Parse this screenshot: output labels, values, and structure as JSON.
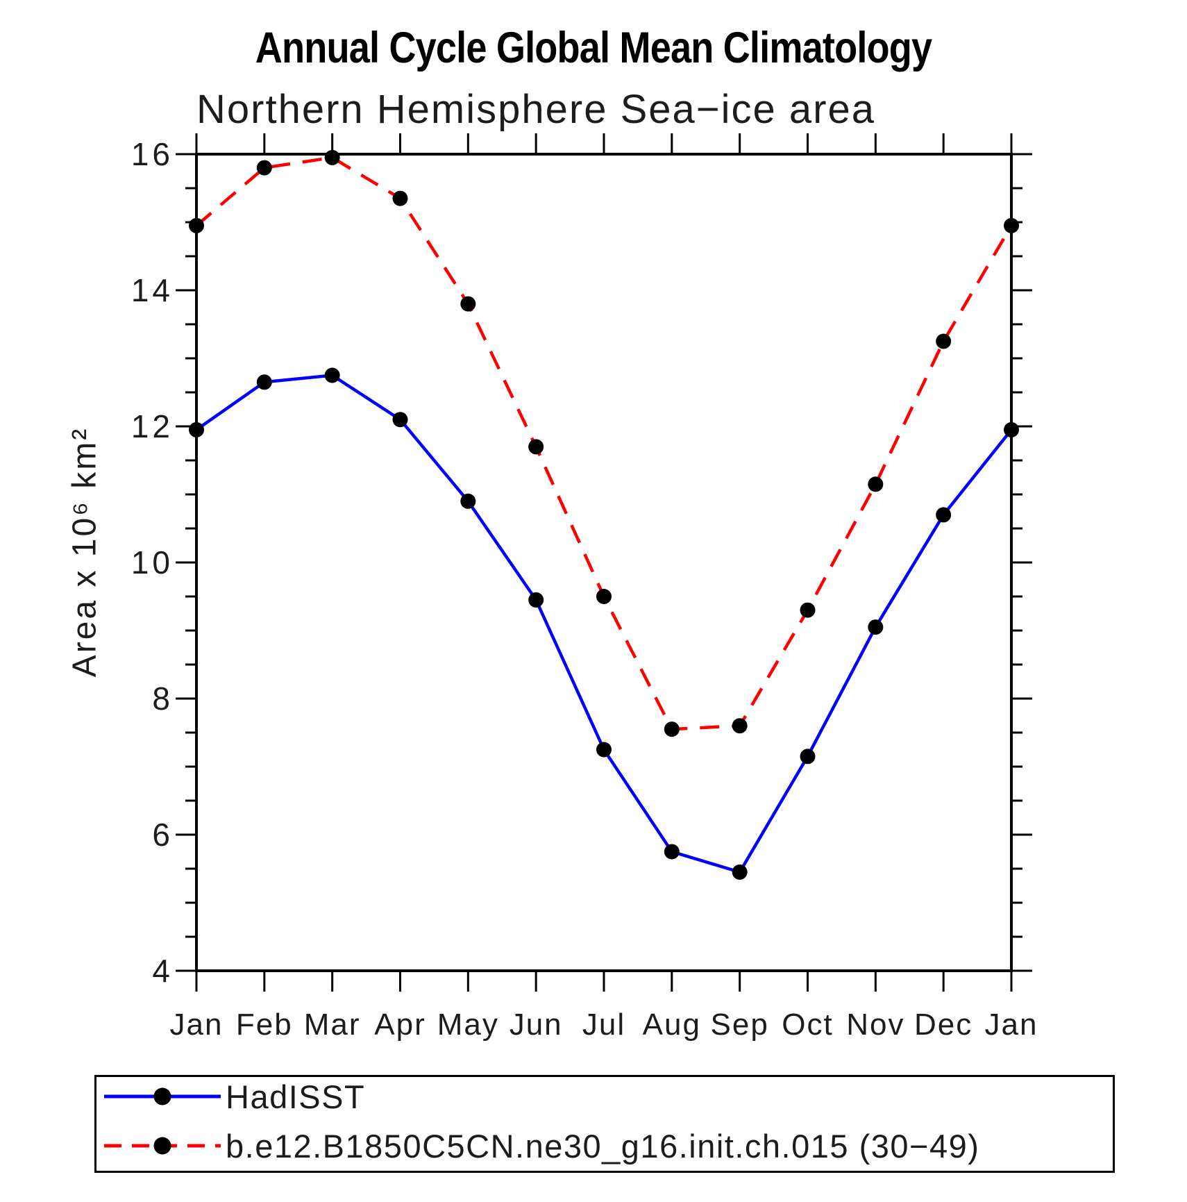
{
  "chart_data": {
    "type": "line",
    "title": "Annual Cycle Global Mean Climatology",
    "subtitle": "Northern Hemisphere Sea−ice area",
    "ylabel": "Area x 10⁶ km²",
    "xlabel": "",
    "categories": [
      "Jan",
      "Feb",
      "Mar",
      "Apr",
      "May",
      "Jun",
      "Jul",
      "Aug",
      "Sep",
      "Oct",
      "Nov",
      "Dec",
      "Jan"
    ],
    "ylim": [
      4,
      16
    ],
    "y_major_ticks": [
      4,
      6,
      8,
      10,
      12,
      14,
      16
    ],
    "y_minor_step": 0.5,
    "grid": false,
    "frame_color": "#000000",
    "marker": "filled-circle",
    "marker_color": "#000000",
    "series": [
      {
        "name": "HadISST",
        "color": "#0000ff",
        "line_style": "solid",
        "values": [
          11.95,
          12.65,
          12.75,
          12.1,
          10.9,
          9.45,
          7.25,
          5.75,
          5.45,
          7.15,
          9.05,
          10.7,
          11.95
        ]
      },
      {
        "name": "b.e12.B1850C5CN.ne30_g16.init.ch.015 (30−49)",
        "color": "#ff0000",
        "line_style": "dashed",
        "values": [
          14.95,
          15.8,
          15.95,
          15.35,
          13.8,
          11.7,
          9.5,
          7.55,
          7.6,
          9.3,
          11.15,
          13.25,
          14.95
        ]
      }
    ],
    "legend": {
      "position": "bottom-left-box",
      "entries": [
        {
          "label": "HadISST",
          "color": "#0000ff",
          "style": "solid"
        },
        {
          "label": "b.e12.B1850C5CN.ne30_g16.init.ch.015 (30−49)",
          "color": "#ff0000",
          "style": "dashed"
        }
      ]
    }
  }
}
